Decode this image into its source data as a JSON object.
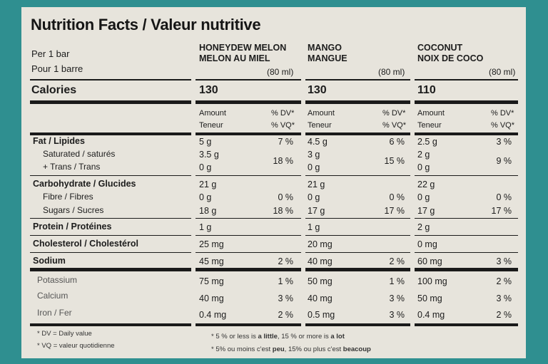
{
  "title": "Nutrition Facts / Valeur nutritive",
  "per_en": "Per 1 bar",
  "per_fr": "Pour 1 barre",
  "calories_label": "Calories",
  "products": [
    {
      "name_en": "HONEYDEW MELON",
      "name_fr": "MELON AU MIEL",
      "serving": "(80 ml)",
      "calories": "130"
    },
    {
      "name_en": "MANGO",
      "name_fr": "MANGUE",
      "serving": "(80 ml)",
      "calories": "130"
    },
    {
      "name_en": "COCONUT",
      "name_fr": "NOIX DE COCO",
      "serving": "(80 ml)",
      "calories": "110"
    }
  ],
  "header": {
    "amount": "Amount",
    "teneur": "Teneur",
    "dv": "% DV*",
    "vq": "% VQ*"
  },
  "labels": {
    "fat": "Fat / Lipides",
    "saturated": "Saturated / saturés",
    "trans": "+ Trans / Trans",
    "carb": "Carbohydrate / Glucides",
    "fibre": "Fibre / Fibres",
    "sugars": "Sugars / Sucres",
    "protein": "Protein / Protéines",
    "cholesterol": "Cholesterol / Cholestérol",
    "sodium": "Sodium",
    "potassium": "Potassium",
    "calcium": "Calcium",
    "iron": "Iron / Fer"
  },
  "values": [
    {
      "fat": "5 g",
      "fat_pct": "7 %",
      "sat": "3.5 g",
      "sat_pct": "18 %",
      "trans": "0 g",
      "carb": "21 g",
      "fibre": "0 g",
      "fibre_pct": "0 %",
      "sugars": "18 g",
      "sugars_pct": "18 %",
      "protein": "1 g",
      "chol": "25 mg",
      "sodium": "45 mg",
      "sodium_pct": "2 %",
      "potassium": "75 mg",
      "potassium_pct": "1 %",
      "calcium": "40 mg",
      "calcium_pct": "3 %",
      "iron": "0.4 mg",
      "iron_pct": "2 %"
    },
    {
      "fat": "4.5 g",
      "fat_pct": "6 %",
      "sat": "3 g",
      "sat_pct": "15 %",
      "trans": "0 g",
      "carb": "21 g",
      "fibre": "0 g",
      "fibre_pct": "0 %",
      "sugars": "17 g",
      "sugars_pct": "17 %",
      "protein": "1 g",
      "chol": "20 mg",
      "sodium": "40 mg",
      "sodium_pct": "2 %",
      "potassium": "50 mg",
      "potassium_pct": "1 %",
      "calcium": "40 mg",
      "calcium_pct": "3 %",
      "iron": "0.5 mg",
      "iron_pct": "3 %"
    },
    {
      "fat": "2.5 g",
      "fat_pct": "3 %",
      "sat": "2 g",
      "sat_pct": "9 %",
      "trans": "0 g",
      "carb": "22 g",
      "fibre": "0 g",
      "fibre_pct": "0 %",
      "sugars": "17 g",
      "sugars_pct": "17 %",
      "protein": "2 g",
      "chol": "0 mg",
      "sodium": "60 mg",
      "sodium_pct": "3 %",
      "potassium": "100 mg",
      "potassium_pct": "2 %",
      "calcium": "50 mg",
      "calcium_pct": "3 %",
      "iron": "0.4 mg",
      "iron_pct": "2 %"
    }
  ],
  "footnotes": {
    "dv": "* DV = Daily value",
    "vq": "* VQ = valeur quotidienne",
    "en_pre": "* 5 % or less is ",
    "en_little": "a little",
    "en_mid": ", 15 % or more is ",
    "en_lot": "a lot",
    "fr_pre": "* 5% ou moins c'est ",
    "fr_peu": "peu",
    "fr_mid": ", 15% ou plus c'est ",
    "fr_beaucoup": "beacoup"
  },
  "colors": {
    "background": "#2f8f90",
    "panel": "#e7e4dc",
    "ink": "#1c1c1c"
  }
}
